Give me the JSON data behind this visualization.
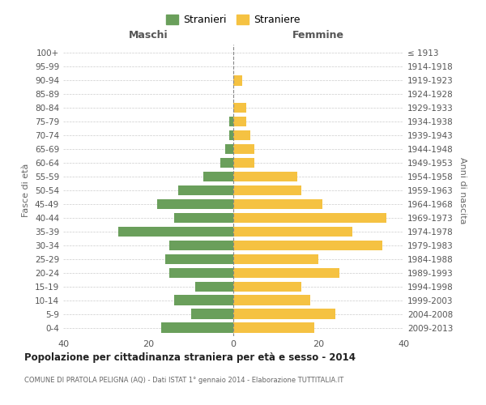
{
  "age_groups": [
    "0-4",
    "5-9",
    "10-14",
    "15-19",
    "20-24",
    "25-29",
    "30-34",
    "35-39",
    "40-44",
    "45-49",
    "50-54",
    "55-59",
    "60-64",
    "65-69",
    "70-74",
    "75-79",
    "80-84",
    "85-89",
    "90-94",
    "95-99",
    "100+"
  ],
  "birth_years": [
    "2009-2013",
    "2004-2008",
    "1999-2003",
    "1994-1998",
    "1989-1993",
    "1984-1988",
    "1979-1983",
    "1974-1978",
    "1969-1973",
    "1964-1968",
    "1959-1963",
    "1954-1958",
    "1949-1953",
    "1944-1948",
    "1939-1943",
    "1934-1938",
    "1929-1933",
    "1924-1928",
    "1919-1923",
    "1914-1918",
    "≤ 1913"
  ],
  "maschi": [
    17,
    10,
    14,
    9,
    15,
    16,
    15,
    27,
    14,
    18,
    13,
    7,
    3,
    2,
    1,
    1,
    0,
    0,
    0,
    0,
    0
  ],
  "femmine": [
    19,
    24,
    18,
    16,
    25,
    20,
    35,
    28,
    36,
    21,
    16,
    15,
    5,
    5,
    4,
    3,
    3,
    0,
    2,
    0,
    0
  ],
  "maschi_color": "#6a9f5b",
  "femmine_color": "#f5c242",
  "background_color": "#ffffff",
  "grid_color": "#cccccc",
  "title": "Popolazione per cittadinanza straniera per età e sesso - 2014",
  "subtitle": "COMUNE DI PRATOLA PELIGNA (AQ) - Dati ISTAT 1° gennaio 2014 - Elaborazione TUTTITALIA.IT",
  "xlabel_left": "Maschi",
  "xlabel_right": "Femmine",
  "ylabel_left": "Fasce di età",
  "ylabel_right": "Anni di nascita",
  "legend_maschi": "Stranieri",
  "legend_femmine": "Straniere",
  "xlim": 40,
  "bar_height": 0.75
}
